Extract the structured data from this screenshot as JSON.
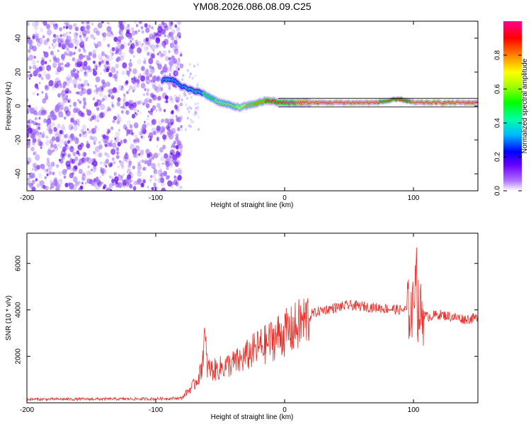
{
  "figure": {
    "title": "YM08.2026.086.08.09.C25"
  },
  "colors": {
    "series_line": "#e8302a",
    "axis": "#000000",
    "scatter_base": "#7a2cf0",
    "colormap": [
      "#ffffff",
      "#7a2cf0",
      "#2000ff",
      "#00c8ff",
      "#00ff40",
      "#c8ff00",
      "#ff8000",
      "#ff0020",
      "#ff00a0"
    ]
  },
  "chart_data": [
    {
      "type": "heatmap",
      "title": "YM08.2026.086.08.09.C25",
      "xlabel": "Height of straight line (km)",
      "ylabel": "Frequency (Hz)",
      "xlim": [
        -200,
        150
      ],
      "ylim": [
        -50,
        50
      ],
      "xticks": [
        -200,
        -100,
        0,
        100
      ],
      "yticks": [
        -40,
        -20,
        0,
        20,
        40
      ],
      "colorbar": {
        "label": "Normalized spectral amplitude",
        "range": [
          0.0,
          1.0
        ],
        "ticks": [
          0.0,
          0.2,
          0.4,
          0.6,
          0.8
        ]
      },
      "noise_region_x": [
        -200,
        -80
      ],
      "ridge": {
        "x": [
          -95,
          -90,
          -85,
          -80,
          -75,
          -70,
          -65,
          -60,
          -55,
          -50,
          -45,
          -40,
          -35,
          -30,
          -25,
          -20,
          -15,
          -10,
          -5,
          0,
          10,
          20,
          30,
          50,
          70,
          80,
          90,
          100,
          110,
          120,
          130,
          150
        ],
        "freq": [
          15,
          16,
          15,
          12,
          10,
          9,
          8,
          6,
          4,
          2,
          1,
          0,
          -1,
          0,
          1,
          2,
          3,
          3,
          2,
          2,
          2,
          2,
          2,
          2,
          2,
          3,
          4,
          2,
          2,
          2,
          2,
          2
        ],
        "amplitude": [
          0.3,
          0.35,
          0.3,
          0.3,
          0.35,
          0.35,
          0.4,
          0.45,
          0.5,
          0.6,
          0.6,
          0.55,
          0.65,
          0.7,
          0.75,
          0.8,
          0.8,
          0.85,
          0.9,
          0.9,
          0.95,
          0.95,
          0.97,
          0.98,
          0.98,
          0.9,
          0.8,
          0.97,
          0.97,
          0.97,
          0.97,
          0.95
        ]
      }
    },
    {
      "type": "line",
      "xlabel": "Height of straight line (km)",
      "ylabel": "SNR (10 * v/v)",
      "xlim": [
        -200,
        150
      ],
      "ylim": [
        0,
        7300
      ],
      "xticks": [
        -200,
        -100,
        0,
        100
      ],
      "yticks": [
        2000,
        4000,
        6000
      ],
      "series": [
        {
          "name": "SNR",
          "x": [
            -200,
            -150,
            -100,
            -80,
            -75,
            -70,
            -65,
            -62,
            -60,
            -55,
            -50,
            -45,
            -40,
            -35,
            -30,
            -25,
            -20,
            -15,
            -10,
            -5,
            0,
            5,
            10,
            15,
            20,
            25,
            30,
            40,
            50,
            60,
            70,
            80,
            90,
            95,
            100,
            102,
            103,
            105,
            108,
            110,
            120,
            130,
            140,
            150
          ],
          "values": [
            150,
            160,
            170,
            200,
            500,
            800,
            1300,
            2800,
            1500,
            1400,
            1500,
            1600,
            1700,
            1800,
            2000,
            2200,
            2400,
            2500,
            2700,
            2900,
            3000,
            3100,
            3300,
            3500,
            3800,
            3900,
            4000,
            4100,
            4200,
            4150,
            4100,
            4050,
            4000,
            4000,
            3900,
            6800,
            4000,
            3900,
            3800,
            3700,
            3800,
            3700,
            3600,
            3650
          ]
        }
      ]
    }
  ]
}
